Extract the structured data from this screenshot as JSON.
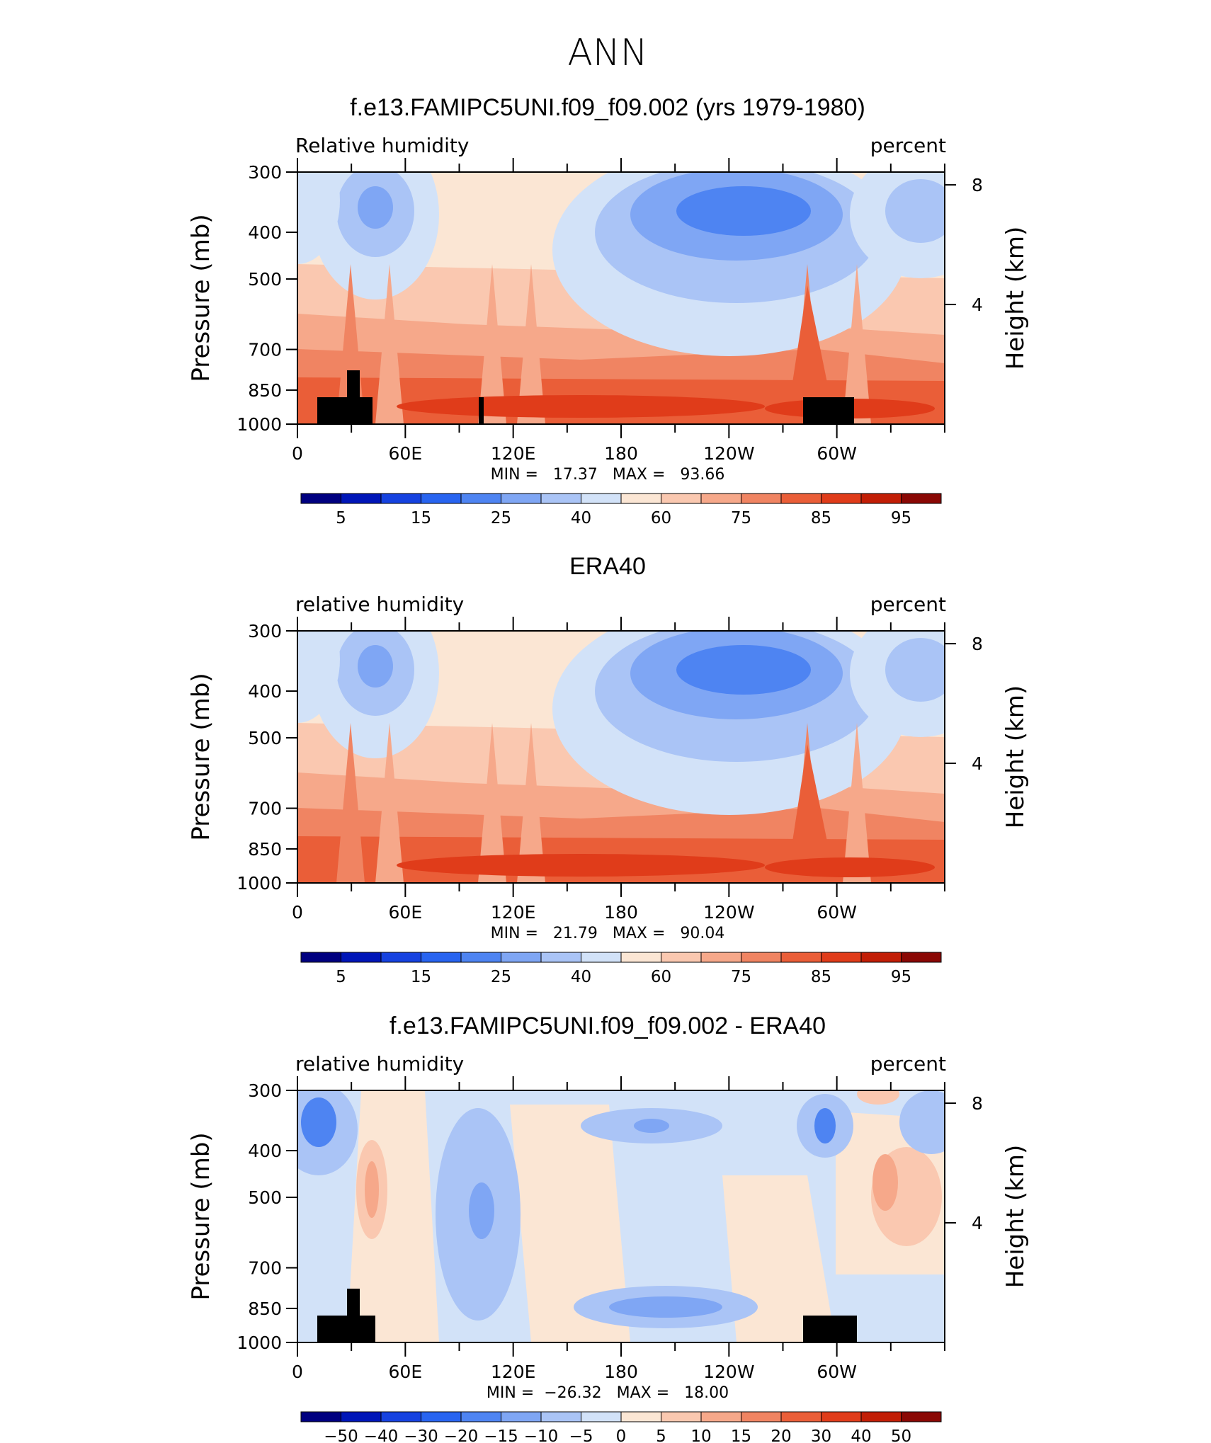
{
  "page_title": "ANN",
  "colors": {
    "full_scale": [
      "#000080",
      "#0016b8",
      "#1642e0",
      "#2864f0",
      "#4e84f2",
      "#7fa6f4",
      "#aac4f6",
      "#d2e2f8",
      "#fbe6d4",
      "#fac8b0",
      "#f6a88a",
      "#f08462",
      "#ea5e38",
      "#e03c1a",
      "#c21e06",
      "#8a0804"
    ]
  },
  "chart_data": [
    {
      "type": "heatmap",
      "title": "f.e13.FAMIPC5UNI.f09_f09.002 (yrs 1979-1980)",
      "left_label": "Relative humidity",
      "right_label": "percent",
      "ylabel": "Pressure (mb)",
      "ylabel_right": "Height (km)",
      "y_ticks": [
        "300",
        "400",
        "500",
        "700",
        "850",
        "1000"
      ],
      "y_tick_values": [
        300,
        400,
        500,
        700,
        850,
        1000
      ],
      "y_right_ticks": [
        "8",
        "4"
      ],
      "y_right_tick_values": [
        8,
        4
      ],
      "x_ticks": [
        "0",
        "60E",
        "120E",
        "180",
        "120W",
        "60W"
      ],
      "x_tick_values": [
        0,
        60,
        120,
        180,
        240,
        300
      ],
      "xlim": [
        0,
        360
      ],
      "stats_text": "MIN =   17.37   MAX =   93.66",
      "colorbar_labels": [
        "5",
        "15",
        "25",
        "40",
        "60",
        "75",
        "85",
        "95"
      ]
    },
    {
      "type": "heatmap",
      "title": "ERA40",
      "left_label": "relative humidity",
      "right_label": "percent",
      "ylabel": "Pressure (mb)",
      "ylabel_right": "Height (km)",
      "y_ticks": [
        "300",
        "400",
        "500",
        "700",
        "850",
        "1000"
      ],
      "y_tick_values": [
        300,
        400,
        500,
        700,
        850,
        1000
      ],
      "y_right_ticks": [
        "8",
        "4"
      ],
      "y_right_tick_values": [
        8,
        4
      ],
      "x_ticks": [
        "0",
        "60E",
        "120E",
        "180",
        "120W",
        "60W"
      ],
      "x_tick_values": [
        0,
        60,
        120,
        180,
        240,
        300
      ],
      "xlim": [
        0,
        360
      ],
      "stats_text": "MIN =   21.79   MAX =   90.04",
      "colorbar_labels": [
        "5",
        "15",
        "25",
        "40",
        "60",
        "75",
        "85",
        "95"
      ]
    },
    {
      "type": "heatmap",
      "title": "f.e13.FAMIPC5UNI.f09_f09.002 - ERA40",
      "left_label": "relative humidity",
      "right_label": "percent",
      "ylabel": "Pressure (mb)",
      "ylabel_right": "Height (km)",
      "y_ticks": [
        "300",
        "400",
        "500",
        "700",
        "850",
        "1000"
      ],
      "y_tick_values": [
        300,
        400,
        500,
        700,
        850,
        1000
      ],
      "y_right_ticks": [
        "8",
        "4"
      ],
      "y_right_tick_values": [
        8,
        4
      ],
      "x_ticks": [
        "0",
        "60E",
        "120E",
        "180",
        "120W",
        "60W"
      ],
      "x_tick_values": [
        0,
        60,
        120,
        180,
        240,
        300
      ],
      "xlim": [
        0,
        360
      ],
      "stats_text": "MIN =  −26.32   MAX =   18.00",
      "colorbar_labels": [
        "−50",
        "−40",
        "−30",
        "−20",
        "−15",
        "−10",
        "−5",
        "0",
        "5",
        "10",
        "15",
        "20",
        "30",
        "40",
        "50"
      ]
    }
  ]
}
